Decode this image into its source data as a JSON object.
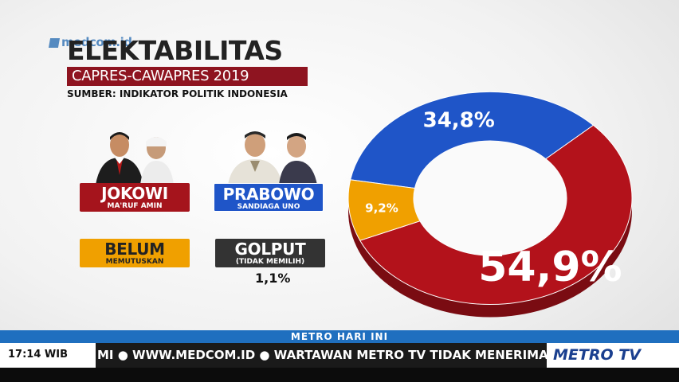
{
  "watermark": "medcom.id",
  "title": "ELEKTABILITAS",
  "subtitle": "CAPRES-CAWAPRES 2019",
  "source": "SUMBER: INDIKATOR POLITIK INDONESIA",
  "candidates": [
    {
      "name": "JOKOWI",
      "running_mate": "MA'RUF AMIN"
    },
    {
      "name": "PRABOWO",
      "running_mate": "SANDIAGA UNO"
    }
  ],
  "other": [
    {
      "name": "BELUM",
      "sub": "MEMUTUSKAN"
    },
    {
      "name": "GOLPUT",
      "sub": "(TIDAK MEMILIH)",
      "value": "1,1%"
    }
  ],
  "chart_data": {
    "type": "pie",
    "labels": [
      "34,8%",
      "54,9%",
      "9,2%"
    ],
    "values": [
      34.8,
      54.9,
      9.2
    ],
    "colors": [
      "#1f55c8",
      "#b3121b",
      "#f0a000"
    ]
  },
  "ticker": {
    "program": "METRO HARI INI",
    "time": "17:14 WIB",
    "crawl": "MI  ●  WWW.MEDCOM.ID  ●  WARTAWAN METRO TV TIDAK MENERIMA IMBAL",
    "channel": "METRO TV"
  }
}
